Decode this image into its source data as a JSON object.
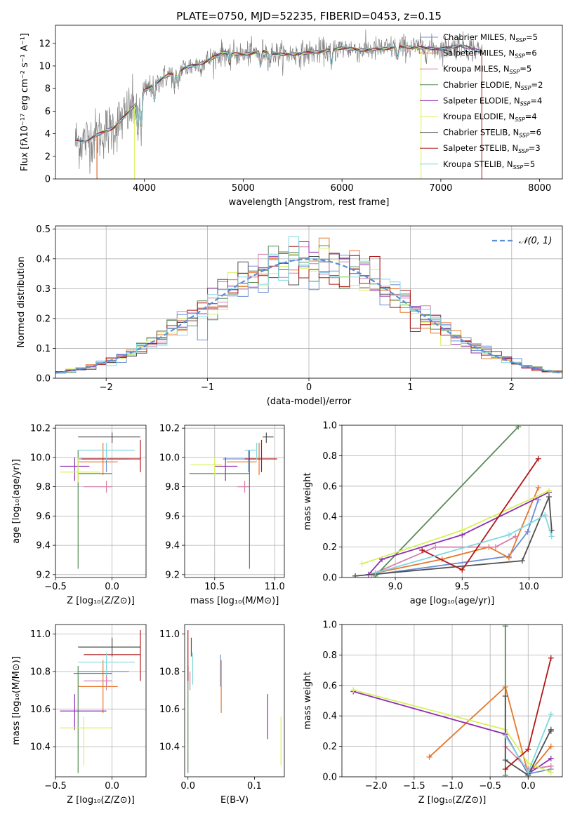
{
  "colors": {
    "c1": "#6b8fd8",
    "c2": "#e8762a",
    "c3": "#d580a8",
    "c4": "#5a8a5a",
    "c5": "#8e2fb0",
    "c6": "#d8f05a",
    "c7": "#505050",
    "c8": "#b01818",
    "c9": "#80d8e0",
    "mean": "#5b8fd8"
  },
  "chart_data": [
    {
      "type": "line",
      "title": "PLATE=0750, MJD=52235, FIBERID=0453, z=0.15",
      "xlabel": "wavelength [Angstrom, rest frame]",
      "ylabel": "Flux [fλ10⁻¹⁷ erg cm⁻² s⁻¹ A⁻¹]",
      "xlim": [
        3100,
        8230
      ],
      "ylim": [
        0,
        13.6
      ],
      "xticks": [
        4000,
        5000,
        6000,
        7000,
        8000
      ],
      "yticks": [
        0,
        2,
        4,
        6,
        8,
        10,
        12
      ],
      "grid": false,
      "legend": "top-right",
      "legend_entries": [
        {
          "label": "Chabrier MILES, N",
          "sub": "SSP",
          "suffix": "=5",
          "color": "c1"
        },
        {
          "label": "Salpeter MILES, N",
          "sub": "SSP",
          "suffix": "=6",
          "color": "c2"
        },
        {
          "label": "Kroupa MILES, N",
          "sub": "SSP",
          "suffix": "=5",
          "color": "c3"
        },
        {
          "label": "Chabrier ELODIE, N",
          "sub": "SSP",
          "suffix": "=2",
          "color": "c4"
        },
        {
          "label": "Salpeter ELODIE, N",
          "sub": "SSP",
          "suffix": "=4",
          "color": "c5"
        },
        {
          "label": "Kroupa ELODIE, N",
          "sub": "SSP",
          "suffix": "=4",
          "color": "c6"
        },
        {
          "label": "Chabrier STELIB, N",
          "sub": "SSP",
          "suffix": "=6",
          "color": "c7"
        },
        {
          "label": "Salpeter STELIB, N",
          "sub": "SSP",
          "suffix": "=3",
          "color": "c8"
        },
        {
          "label": "Kroupa STELIB, N",
          "sub": "SSP",
          "suffix": "=5",
          "color": "c9"
        }
      ],
      "continuum": [
        [
          3300,
          3.3
        ],
        [
          3400,
          3.4
        ],
        [
          3500,
          3.8
        ],
        [
          3700,
          4.6
        ],
        [
          3900,
          6.5
        ],
        [
          4000,
          7.8
        ],
        [
          4200,
          9.0
        ],
        [
          4400,
          9.8
        ],
        [
          4600,
          10.3
        ],
        [
          4800,
          11.2
        ],
        [
          5000,
          11.0
        ],
        [
          5200,
          11.3
        ],
        [
          5400,
          11.0
        ],
        [
          5600,
          11.1
        ],
        [
          5800,
          11.3
        ],
        [
          6000,
          11.6
        ],
        [
          6200,
          11.4
        ],
        [
          6400,
          11.5
        ],
        [
          6600,
          11.7
        ],
        [
          6800,
          11.6
        ],
        [
          7000,
          11.5
        ],
        [
          7200,
          11.8
        ],
        [
          7400,
          11.3
        ]
      ],
      "absorption_lines": [
        [
          3934,
          -3
        ],
        [
          3969,
          -3
        ],
        [
          4102,
          -1.5
        ],
        [
          4304,
          -1.5
        ],
        [
          4341,
          -1.2
        ],
        [
          4861,
          -1
        ],
        [
          5175,
          -1.3
        ],
        [
          5270,
          -0.8
        ],
        [
          5893,
          -1.5
        ],
        [
          6563,
          -1
        ]
      ]
    },
    {
      "type": "histogram",
      "xlabel": "(data-model)/error",
      "ylabel": "Normed distribution",
      "xlim": [
        -2.5,
        2.5
      ],
      "ylim": [
        0,
        0.51
      ],
      "xticks": [
        -2,
        -1,
        0,
        1,
        2
      ],
      "yticks": [
        0.0,
        0.1,
        0.2,
        0.3,
        0.4,
        0.5
      ],
      "grid": true,
      "legend": "top-right",
      "mean_label": "𝒩(0, 1)",
      "bin_width": 0.1,
      "series_colors": [
        "c1",
        "c2",
        "c3",
        "c4",
        "c5",
        "c6",
        "c7",
        "c8",
        "c9"
      ]
    },
    {
      "type": "scatter",
      "xlabel": "Z [log₁₀(Z/Z⊙)]",
      "ylabel": "age  [log₁₀(age/yr)]",
      "xlim": [
        -0.5,
        0.3
      ],
      "ylim": [
        9.18,
        10.22
      ],
      "xticks": [
        -0.5,
        0.0
      ],
      "yticks": [
        9.2,
        9.4,
        9.6,
        9.8,
        10.0,
        10.2
      ],
      "grid": true,
      "points": [
        {
          "c": "c1",
          "x": -0.05,
          "xl": -0.3,
          "xh": 0.15,
          "y": 9.99,
          "yl": 9.9,
          "yh": 10.05
        },
        {
          "c": "c2",
          "x": -0.08,
          "xl": -0.3,
          "xh": 0.05,
          "y": 9.97,
          "yl": 9.88,
          "yh": 10.1
        },
        {
          "c": "c3",
          "x": -0.05,
          "xl": -0.25,
          "xh": 0.0,
          "y": 9.8,
          "yl": 9.76,
          "yh": 9.84
        },
        {
          "c": "c4",
          "x": -0.3,
          "xl": -0.3,
          "xh": 0.0,
          "y": 9.89,
          "yl": 9.24,
          "yh": 10.05
        },
        {
          "c": "c5",
          "x": -0.33,
          "xl": -0.46,
          "xh": -0.2,
          "y": 9.94,
          "yl": 9.84,
          "yh": 10.0
        },
        {
          "c": "c6",
          "x": -0.3,
          "xl": -0.46,
          "xh": -0.1,
          "y": 9.9,
          "yl": 9.83,
          "yh": 10.0
        },
        {
          "c": "c7",
          "x": 0.0,
          "xl": -0.3,
          "xh": 0.25,
          "y": 10.14,
          "yl": 10.1,
          "yh": 10.17
        },
        {
          "c": "c8",
          "x": 0.25,
          "xl": -0.27,
          "xh": 0.25,
          "y": 9.99,
          "yl": 9.9,
          "yh": 10.12
        },
        {
          "c": "c9",
          "x": -0.05,
          "xl": -0.3,
          "xh": 0.2,
          "y": 10.05,
          "yl": 9.98,
          "yh": 10.1
        }
      ]
    },
    {
      "type": "scatter",
      "xlabel": "mass [log₁₀(M/M⊙)]",
      "ylabel": "",
      "xlim": [
        10.25,
        11.08
      ],
      "ylim": [
        9.18,
        10.22
      ],
      "xticks": [
        10.5,
        11.0
      ],
      "yticks": [
        9.2,
        9.4,
        9.6,
        9.8,
        10.0,
        10.2
      ],
      "grid": true,
      "points": [
        {
          "c": "c1",
          "x": 10.78,
          "xl": 10.57,
          "xh": 10.85,
          "y": 9.99,
          "yl": 9.9,
          "yh": 10.05
        },
        {
          "c": "c2",
          "x": 10.87,
          "xl": 10.6,
          "xh": 10.85,
          "y": 9.97,
          "yl": 9.88,
          "yh": 10.1
        },
        {
          "c": "c3",
          "x": 10.75,
          "xl": 10.69,
          "xh": 10.79,
          "y": 9.8,
          "yl": 9.76,
          "yh": 9.84
        },
        {
          "c": "c4",
          "x": 10.79,
          "xl": 10.29,
          "xh": 10.79,
          "y": 9.89,
          "yl": 9.24,
          "yh": 10.05
        },
        {
          "c": "c5",
          "x": 10.59,
          "xl": 10.5,
          "xh": 10.69,
          "y": 9.94,
          "yl": 9.84,
          "yh": 10.0
        },
        {
          "c": "c6",
          "x": 10.5,
          "xl": 10.3,
          "xh": 10.56,
          "y": 9.95,
          "yl": 9.88,
          "yh": 10.0
        },
        {
          "c": "c7",
          "x": 10.93,
          "xl": 10.9,
          "xh": 10.99,
          "y": 10.14,
          "yl": 10.1,
          "yh": 10.17
        },
        {
          "c": "c8",
          "x": 10.89,
          "xl": 10.75,
          "xh": 11.02,
          "y": 9.99,
          "yl": 9.9,
          "yh": 10.12
        },
        {
          "c": "c9",
          "x": 10.85,
          "xl": 10.75,
          "xh": 10.85,
          "y": 10.05,
          "yl": 9.98,
          "yh": 10.1
        }
      ]
    },
    {
      "type": "line",
      "xlabel": "age  [log₁₀(age/yr)]",
      "ylabel": "mass weight",
      "xlim": [
        8.6,
        10.25
      ],
      "ylim": [
        0,
        1.0
      ],
      "xticks": [
        9.0,
        9.5,
        10.0
      ],
      "yticks": [
        0.0,
        0.2,
        0.4,
        0.6,
        0.8,
        1.0
      ],
      "grid": true,
      "series": [
        {
          "c": "c1",
          "x": [
            8.85,
            9.85,
            9.99,
            10.07
          ],
          "y": [
            0.02,
            0.14,
            0.3,
            0.51
          ]
        },
        {
          "c": "c2",
          "x": [
            8.85,
            9.35,
            9.7,
            9.85,
            10.07
          ],
          "y": [
            0.03,
            0.12,
            0.2,
            0.13,
            0.59
          ]
        },
        {
          "c": "c3",
          "x": [
            8.82,
            9.3,
            9.75,
            9.9
          ],
          "y": [
            0.02,
            0.2,
            0.2,
            0.27
          ]
        },
        {
          "c": "c4",
          "x": [
            8.85,
            9.92
          ],
          "y": [
            0.01,
            0.99
          ]
        },
        {
          "c": "c5",
          "x": [
            8.8,
            8.9,
            9.5,
            10.15
          ],
          "y": [
            0.02,
            0.12,
            0.28,
            0.56
          ]
        },
        {
          "c": "c6",
          "x": [
            8.75,
            9.5,
            10.15
          ],
          "y": [
            0.09,
            0.31,
            0.57
          ]
        },
        {
          "c": "c7",
          "x": [
            8.7,
            9.95,
            10.15,
            10.17
          ],
          "y": [
            0.01,
            0.11,
            0.53,
            0.31
          ]
        },
        {
          "c": "c8",
          "x": [
            9.2,
            9.5,
            10.07
          ],
          "y": [
            0.18,
            0.05,
            0.78
          ]
        },
        {
          "c": "c9",
          "x": [
            8.85,
            9.85,
            10.12,
            10.17
          ],
          "y": [
            0.03,
            0.28,
            0.41,
            0.27
          ]
        }
      ]
    },
    {
      "type": "scatter",
      "xlabel": "Z [log₁₀(Z/Z⊙)]",
      "ylabel": "mass [log₁₀(M/M⊙)]",
      "xlim": [
        -0.5,
        0.3
      ],
      "ylim": [
        10.24,
        11.05
      ],
      "xticks": [
        -0.5,
        0.0
      ],
      "yticks": [
        10.4,
        10.6,
        10.8,
        11.0
      ],
      "grid": true,
      "points": [
        {
          "c": "c1",
          "x": -0.05,
          "xl": -0.3,
          "xh": 0.15,
          "y": 10.8,
          "yl": 10.72,
          "yh": 10.83
        },
        {
          "c": "c2",
          "x": -0.08,
          "xl": -0.3,
          "xh": 0.05,
          "y": 10.72,
          "yl": 10.58,
          "yh": 10.86
        },
        {
          "c": "c3",
          "x": -0.05,
          "xl": -0.25,
          "xh": 0.0,
          "y": 10.75,
          "yl": 10.7,
          "yh": 10.8
        },
        {
          "c": "c4",
          "x": -0.3,
          "xl": -0.34,
          "xh": 0.0,
          "y": 10.79,
          "yl": 10.26,
          "yh": 10.83
        },
        {
          "c": "c5",
          "x": -0.33,
          "xl": -0.46,
          "xh": -0.05,
          "y": 10.59,
          "yl": 10.49,
          "yh": 10.68
        },
        {
          "c": "c6",
          "x": -0.25,
          "xl": -0.46,
          "xh": 0.0,
          "y": 10.5,
          "yl": 10.3,
          "yh": 10.56
        },
        {
          "c": "c7",
          "x": 0.0,
          "xl": -0.3,
          "xh": 0.25,
          "y": 10.93,
          "yl": 10.88,
          "yh": 10.98
        },
        {
          "c": "c8",
          "x": 0.25,
          "xl": -0.25,
          "xh": 0.25,
          "y": 10.89,
          "yl": 10.75,
          "yh": 11.02
        },
        {
          "c": "c9",
          "x": -0.05,
          "xl": -0.3,
          "xh": 0.2,
          "y": 10.85,
          "yl": 10.78,
          "yh": 10.9
        }
      ]
    },
    {
      "type": "scatter",
      "xlabel": "E(B-V)",
      "ylabel": "",
      "xlim": [
        -0.005,
        0.145
      ],
      "ylim": [
        10.24,
        11.05
      ],
      "xticks": [
        0.0,
        0.1
      ],
      "yticks": [
        10.4,
        10.6,
        10.8,
        11.0
      ],
      "grid": false,
      "points": [
        {
          "c": "c1",
          "x": 0.049,
          "yl": 10.72,
          "yh": 10.89
        },
        {
          "c": "c2",
          "x": 0.05,
          "yl": 10.58,
          "yh": 10.86
        },
        {
          "c": "c3",
          "x": 0.003,
          "yl": 10.7,
          "yh": 10.8
        },
        {
          "c": "c4",
          "x": 0.0,
          "yl": 10.26,
          "yh": 10.83
        },
        {
          "c": "c5",
          "x": 0.12,
          "yl": 10.44,
          "yh": 10.68
        },
        {
          "c": "c6",
          "x": 0.14,
          "yl": 10.3,
          "yh": 10.56
        },
        {
          "c": "c7",
          "x": 0.005,
          "yl": 10.88,
          "yh": 10.98
        },
        {
          "c": "c8",
          "x": 0.0,
          "yl": 10.75,
          "yh": 11.02
        },
        {
          "c": "c9",
          "x": 0.007,
          "yl": 10.73,
          "yh": 10.9
        }
      ]
    },
    {
      "type": "line",
      "xlabel": "Z [log₁₀(Z/Z⊙)]",
      "ylabel": "mass weight",
      "xlim": [
        -2.45,
        0.45
      ],
      "ylim": [
        0,
        1.0
      ],
      "xticks": [
        -2.0,
        -1.5,
        -1.0,
        -0.5,
        0.0
      ],
      "yticks": [
        0.0,
        0.2,
        0.4,
        0.6,
        0.8,
        1.0
      ],
      "grid": true,
      "series": [
        {
          "c": "c1",
          "x": [
            -0.3,
            0.0,
            0.3
          ],
          "y": [
            0.28,
            0.02,
            0.05
          ]
        },
        {
          "c": "c2",
          "x": [
            -1.3,
            -0.3,
            0.0,
            0.3
          ],
          "y": [
            0.13,
            0.59,
            0.02,
            0.2
          ]
        },
        {
          "c": "c3",
          "x": [
            -0.3,
            0.0,
            0.3
          ],
          "y": [
            0.2,
            0.05,
            0.07
          ]
        },
        {
          "c": "c4",
          "x": [
            -0.3,
            -0.3
          ],
          "y": [
            0.99,
            0.01
          ]
        },
        {
          "c": "c5",
          "x": [
            -2.3,
            -0.3,
            0.0,
            0.3
          ],
          "y": [
            0.56,
            0.28,
            0.02,
            0.12
          ]
        },
        {
          "c": "c6",
          "x": [
            -2.3,
            -0.3,
            0.0,
            0.3
          ],
          "y": [
            0.57,
            0.31,
            0.09,
            0.03
          ]
        },
        {
          "c": "c7",
          "x": [
            -0.3,
            -0.3,
            0.0,
            0.3,
            0.3
          ],
          "y": [
            0.53,
            0.11,
            0.01,
            0.31,
            0.3
          ]
        },
        {
          "c": "c8",
          "x": [
            -0.3,
            0.0,
            0.3
          ],
          "y": [
            0.05,
            0.18,
            0.78
          ]
        },
        {
          "c": "c9",
          "x": [
            -0.3,
            0.0,
            0.3
          ],
          "y": [
            0.27,
            0.03,
            0.41
          ]
        }
      ]
    }
  ]
}
